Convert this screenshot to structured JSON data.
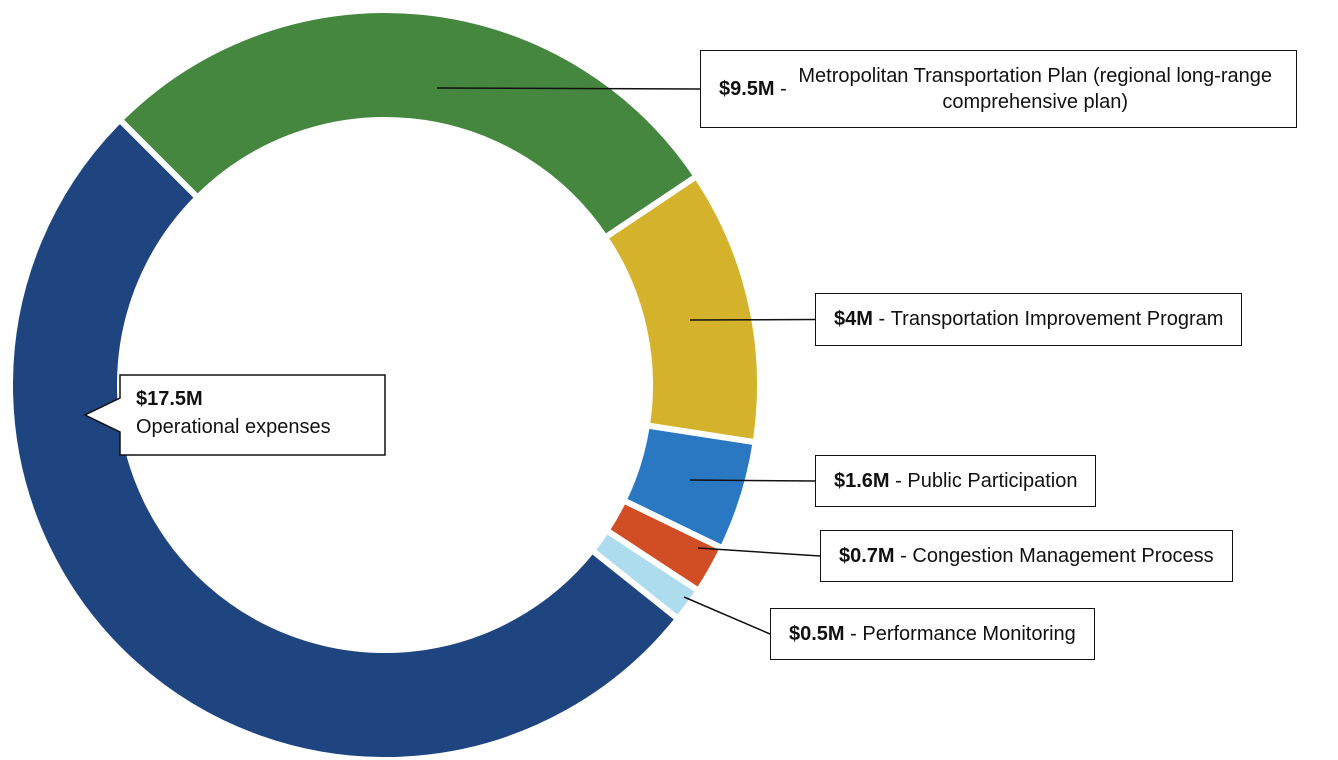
{
  "chart_data": {
    "type": "donut",
    "categories": [
      "Metropolitan Transportation Plan (regional long-range comprehensive plan)",
      "Transportation Improvement Program",
      "Public Participation",
      "Congestion Management Process",
      "Performance Monitoring",
      "Operational expenses"
    ],
    "values": [
      9.5,
      4,
      1.6,
      0.7,
      0.5,
      17.5
    ],
    "value_labels": [
      "$9.5M",
      "$4M",
      "$1.6M",
      "$0.7M",
      "$0.5M",
      "$17.5M"
    ],
    "colors": [
      "#45873f",
      "#d4b22c",
      "#2b78c2",
      "#d04d25",
      "#aedcef",
      "#1f4580"
    ],
    "label_separator": " - "
  }
}
